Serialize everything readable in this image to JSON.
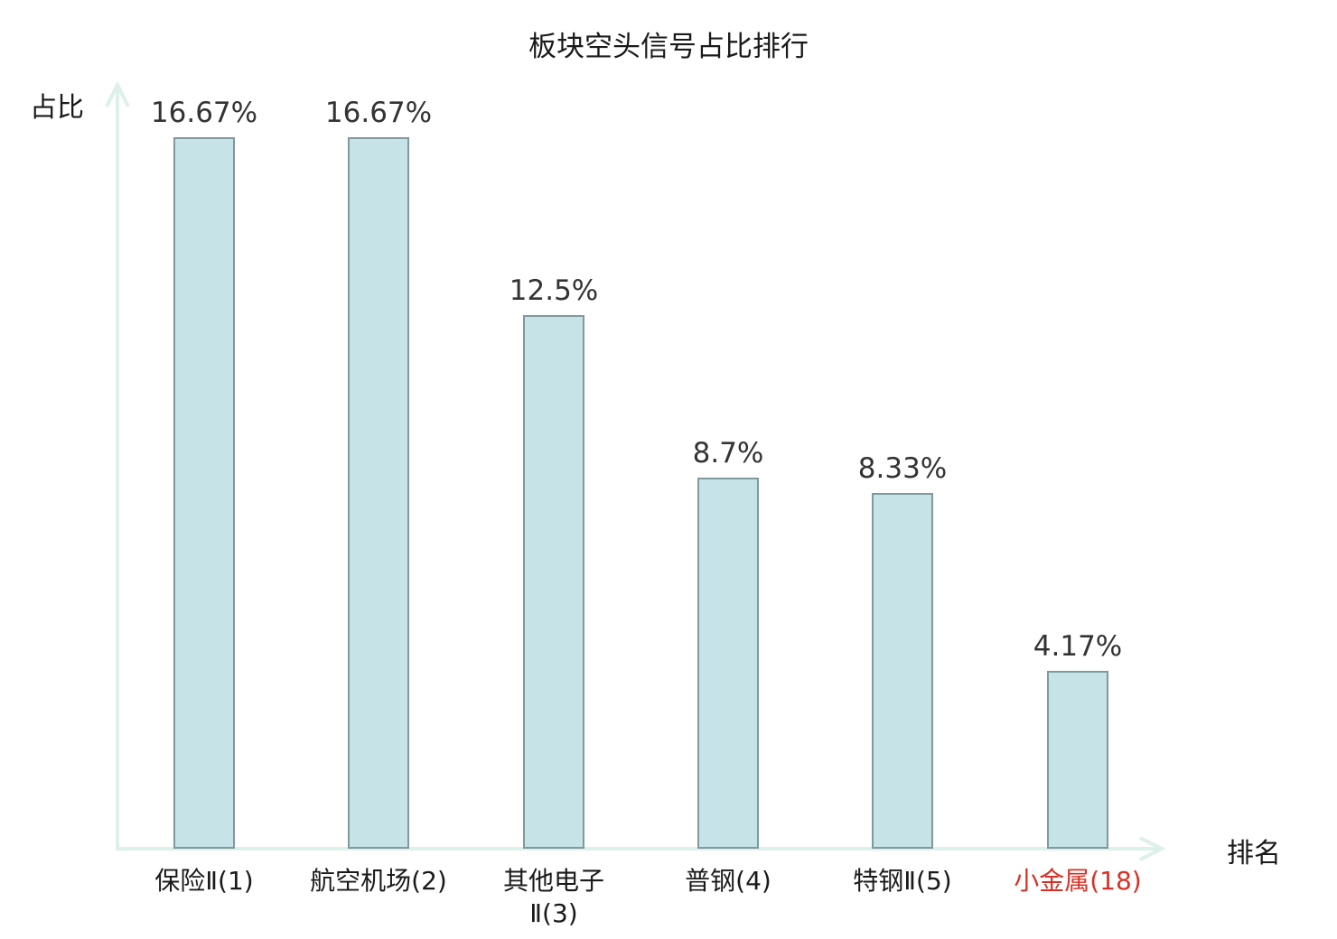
{
  "chart_data": {
    "type": "bar",
    "title": "板块空头信号占比排行",
    "xlabel": "排名",
    "ylabel": "占比",
    "categories": [
      "保险Ⅱ(1)",
      "航空机场(2)",
      "其他电子\nⅡ(3)",
      "普钢(4)",
      "特钢Ⅱ(5)",
      "小金属(18)"
    ],
    "values": [
      16.67,
      16.67,
      12.5,
      8.7,
      8.33,
      4.17
    ],
    "value_labels": [
      "16.67%",
      "16.67%",
      "12.5%",
      "8.7%",
      "8.33%",
      "4.17%"
    ],
    "highlight_index": 5,
    "ylim": [
      0,
      16.67
    ],
    "grid": false,
    "legend_position": "none",
    "colors": {
      "bar_fill": "#c6e3e7",
      "bar_edge": "#7f999c",
      "axis": "#ddf0ea",
      "value_label": "#333333",
      "category_label": "#1a1a1a",
      "highlight_label": "#d93025",
      "title": "#1a1a1a"
    }
  }
}
